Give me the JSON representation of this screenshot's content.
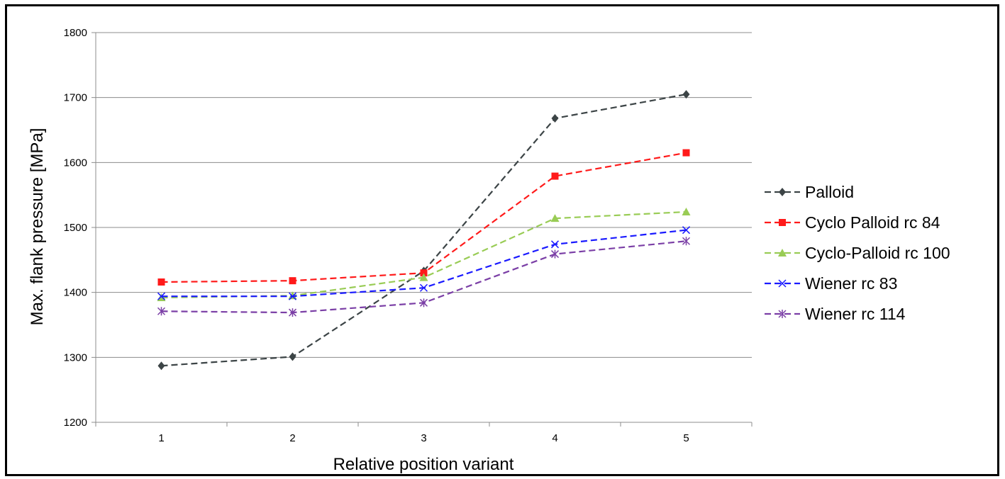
{
  "chart_data": {
    "type": "line",
    "title": "",
    "xlabel": "Relative position variant",
    "ylabel": "Max. flank pressure [MPa]",
    "categories": [
      "1",
      "2",
      "3",
      "4",
      "5"
    ],
    "ylim": [
      1200,
      1800
    ],
    "yticks": [
      "1200",
      "1300",
      "1400",
      "1500",
      "1600",
      "1700",
      "1800"
    ],
    "grid": true,
    "legend_position": "right",
    "series": [
      {
        "name": "Palloid",
        "values": [
          1287,
          1301,
          1433,
          1668,
          1705
        ],
        "color": "#3c4446",
        "marker": "diamond"
      },
      {
        "name": "Cyclo Palloid rc 84",
        "values": [
          1416,
          1418,
          1430,
          1579,
          1615
        ],
        "color": "#ff1a1a",
        "marker": "square"
      },
      {
        "name": "Cyclo-Palloid rc 100",
        "values": [
          1392,
          1395,
          1423,
          1514,
          1524
        ],
        "color": "#99cc55",
        "marker": "triangle"
      },
      {
        "name": "Wiener rc 83",
        "values": [
          1394,
          1394,
          1407,
          1474,
          1496
        ],
        "color": "#1a1aff",
        "marker": "x"
      },
      {
        "name": "Wiener rc 114",
        "values": [
          1371,
          1369,
          1384,
          1459,
          1479
        ],
        "color": "#7b3fa6",
        "marker": "star"
      }
    ]
  }
}
